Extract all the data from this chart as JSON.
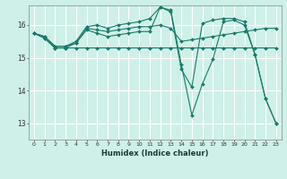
{
  "xlabel": "Humidex (Indice chaleur)",
  "bg_color": "#cef0e8",
  "grid_color": "#ffffff",
  "line_color": "#1a7a6a",
  "xlim": [
    -0.5,
    23.5
  ],
  "ylim": [
    12.5,
    16.6
  ],
  "yticks": [
    13,
    14,
    15,
    16
  ],
  "xticks": [
    0,
    1,
    2,
    3,
    4,
    5,
    6,
    7,
    8,
    9,
    10,
    11,
    12,
    13,
    14,
    15,
    16,
    17,
    18,
    19,
    20,
    21,
    22,
    23
  ],
  "lines": [
    [
      15.75,
      15.65,
      15.35,
      15.35,
      15.45,
      15.9,
      15.85,
      15.8,
      15.85,
      15.9,
      15.95,
      15.95,
      16.0,
      15.9,
      15.5,
      15.55,
      15.6,
      15.65,
      15.7,
      15.75,
      15.8,
      15.85,
      15.9,
      15.9
    ],
    [
      15.75,
      15.65,
      15.35,
      15.35,
      15.5,
      15.95,
      16.0,
      15.9,
      16.0,
      16.05,
      16.1,
      16.2,
      16.55,
      16.45,
      14.8,
      13.25,
      14.2,
      14.95,
      16.1,
      16.15,
      16.0,
      15.1,
      13.75,
      13.0
    ],
    [
      15.75,
      15.6,
      15.3,
      15.3,
      15.3,
      15.3,
      15.3,
      15.3,
      15.3,
      15.3,
      15.3,
      15.3,
      15.3,
      15.3,
      15.3,
      15.3,
      15.3,
      15.3,
      15.3,
      15.3,
      15.3,
      15.3,
      15.3,
      15.3
    ],
    [
      15.75,
      15.6,
      15.3,
      15.3,
      15.45,
      15.85,
      15.75,
      15.65,
      15.7,
      15.75,
      15.8,
      15.8,
      16.55,
      16.4,
      14.65,
      14.1,
      16.05,
      16.15,
      16.2,
      16.2,
      16.1,
      15.1,
      13.75,
      13.0
    ]
  ]
}
